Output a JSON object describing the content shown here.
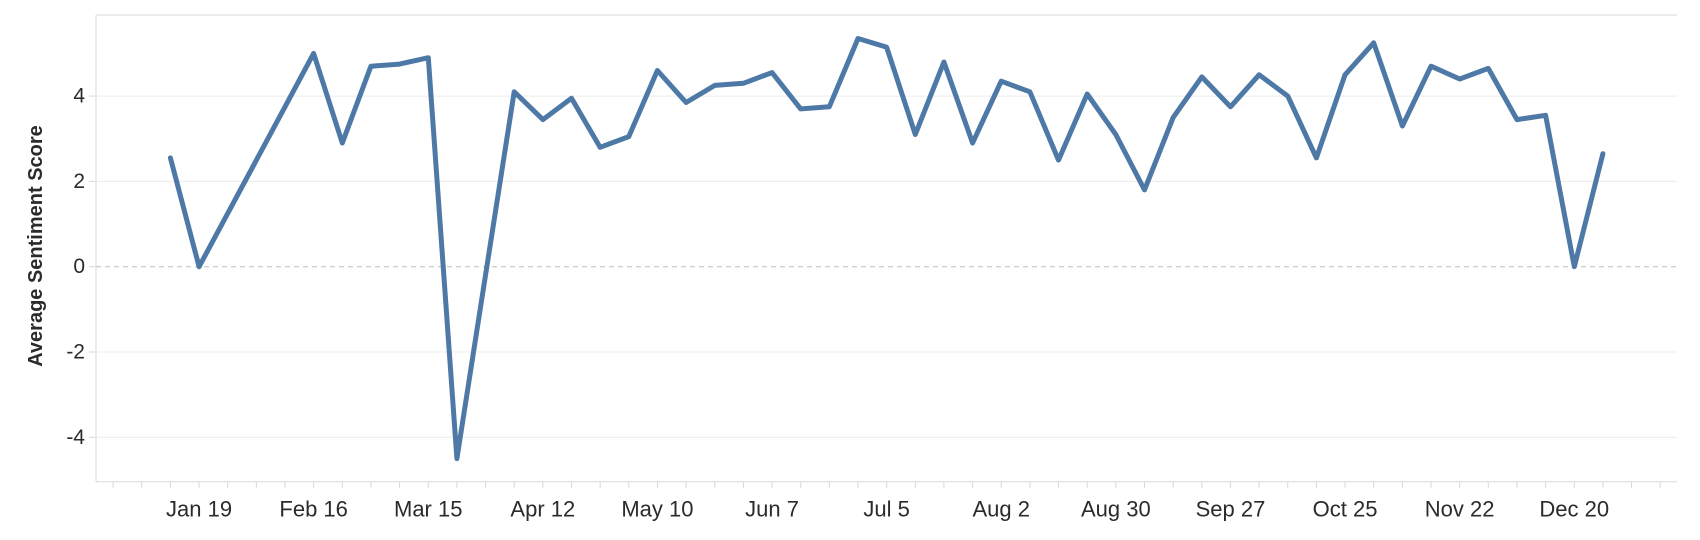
{
  "chart_data": {
    "type": "line",
    "title": "",
    "xlabel": "",
    "ylabel": "Average Sentiment Score",
    "legend": "none",
    "grid": "horizontal-light",
    "zero_line": "dashed",
    "x": [
      "Jan 12",
      "Jan 19",
      "Jan 26",
      "Feb 2",
      "Feb 9",
      "Feb 16",
      "Feb 23",
      "Mar 1",
      "Mar 8",
      "Mar 15",
      "Mar 22",
      "Mar 29",
      "Apr 5",
      "Apr 12",
      "Apr 19",
      "Apr 26",
      "May 3",
      "May 10",
      "May 17",
      "May 24",
      "May 31",
      "Jun 7",
      "Jun 14",
      "Jun 21",
      "Jun 28",
      "Jul 5",
      "Jul 12",
      "Jul 19",
      "Jul 26",
      "Aug 2",
      "Aug 9",
      "Aug 16",
      "Aug 23",
      "Aug 30",
      "Sep 6",
      "Sep 13",
      "Sep 20",
      "Sep 27",
      "Oct 4",
      "Oct 11",
      "Oct 18",
      "Oct 25",
      "Nov 1",
      "Nov 8",
      "Nov 15",
      "Nov 22",
      "Nov 29",
      "Dec 6",
      "Dec 13",
      "Dec 20",
      "Dec 27"
    ],
    "values": [
      2.55,
      0,
      1.25,
      2.5,
      3.75,
      5.0,
      2.9,
      4.7,
      4.75,
      4.9,
      -4.5,
      -0.2,
      4.1,
      3.45,
      3.95,
      2.8,
      3.05,
      4.6,
      3.85,
      4.25,
      4.3,
      4.55,
      3.7,
      3.75,
      5.35,
      5.15,
      3.1,
      4.8,
      2.9,
      4.35,
      4.1,
      2.5,
      4.05,
      3.1,
      1.8,
      3.5,
      4.45,
      3.75,
      4.5,
      4.0,
      2.55,
      4.5,
      5.25,
      3.3,
      4.7,
      4.4,
      4.65,
      3.45,
      3.55,
      0,
      2.65
    ],
    "x_axis_tick_labels": [
      "Jan 19",
      "Feb 16",
      "Mar 15",
      "Apr 12",
      "May 10",
      "Jun 7",
      "Jul 5",
      "Aug 2",
      "Aug 30",
      "Sep 27",
      "Oct 25",
      "Nov 22",
      "Dec 20"
    ],
    "y_axis_ticks": [
      4,
      2,
      0,
      -2,
      -4
    ],
    "ylim": [
      -5.1,
      5.9
    ],
    "line_color": "#4e79a7",
    "label_color": "#2b2b2b",
    "gridline_color": "#ececec",
    "zero_line_color": "#bdbdbd",
    "axis_line_color": "#d9d9d9"
  }
}
